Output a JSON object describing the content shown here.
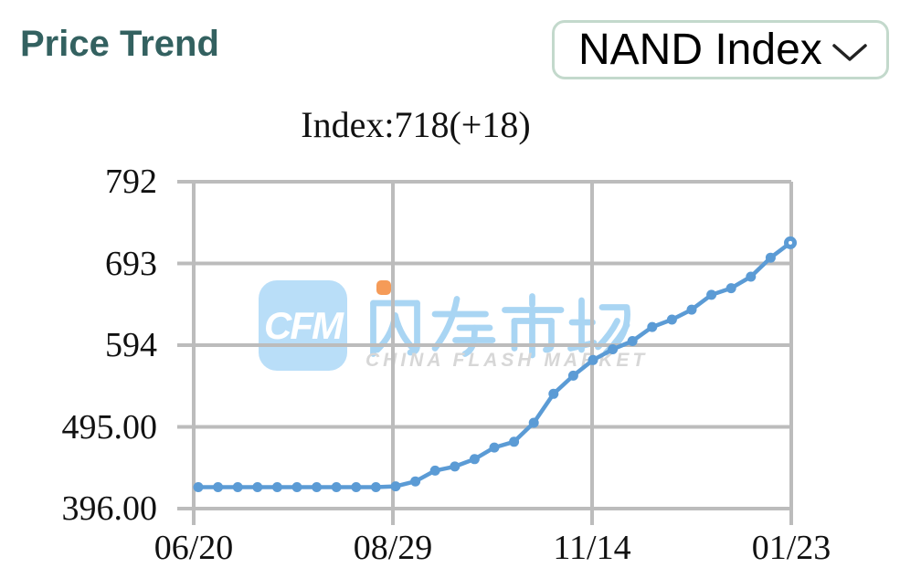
{
  "header": {
    "title": "Price Trend",
    "title_color": "#336160",
    "dropdown": {
      "value": "NAND Index",
      "border_color": "#c3d9cc",
      "chevron_icon": "chevron-down-icon",
      "chevron_color": "#222222"
    }
  },
  "chart_data": {
    "type": "line",
    "title": "Index:718(+18)",
    "latest_value": 718,
    "latest_change": "+18",
    "series": [
      {
        "name": "NAND Index",
        "values": [
          422,
          422,
          422,
          422,
          422,
          422,
          422,
          422,
          422,
          422,
          423,
          429,
          442,
          447,
          456,
          470,
          477,
          500,
          535,
          557,
          576,
          589,
          599,
          616,
          625,
          637,
          655,
          663,
          677,
          700,
          718
        ]
      }
    ],
    "x_tick_labels": [
      "06/20",
      "08/29",
      "11/14",
      "01/23"
    ],
    "y_tick_labels": [
      "792",
      "693",
      "594",
      "495.00",
      "396.00"
    ],
    "y_ticks": [
      792,
      693,
      594,
      495,
      396
    ],
    "ylim": [
      396,
      792
    ],
    "grid": true,
    "legend": "none",
    "line_color": "#5b9bd5",
    "marker_color": "#5b9bd5",
    "grid_color": "#bcbcbc",
    "label_color": "#111111"
  },
  "watermark": {
    "badge_text": "CFM",
    "badge_bg": "#b9def8",
    "cjk_text": "闪存市场",
    "cjk_color": "#a9d5f3",
    "accent_dot_color": "#f59b58",
    "subtext": "CHINA FLASH MARKET",
    "subtext_color": "#d7d7d7"
  }
}
